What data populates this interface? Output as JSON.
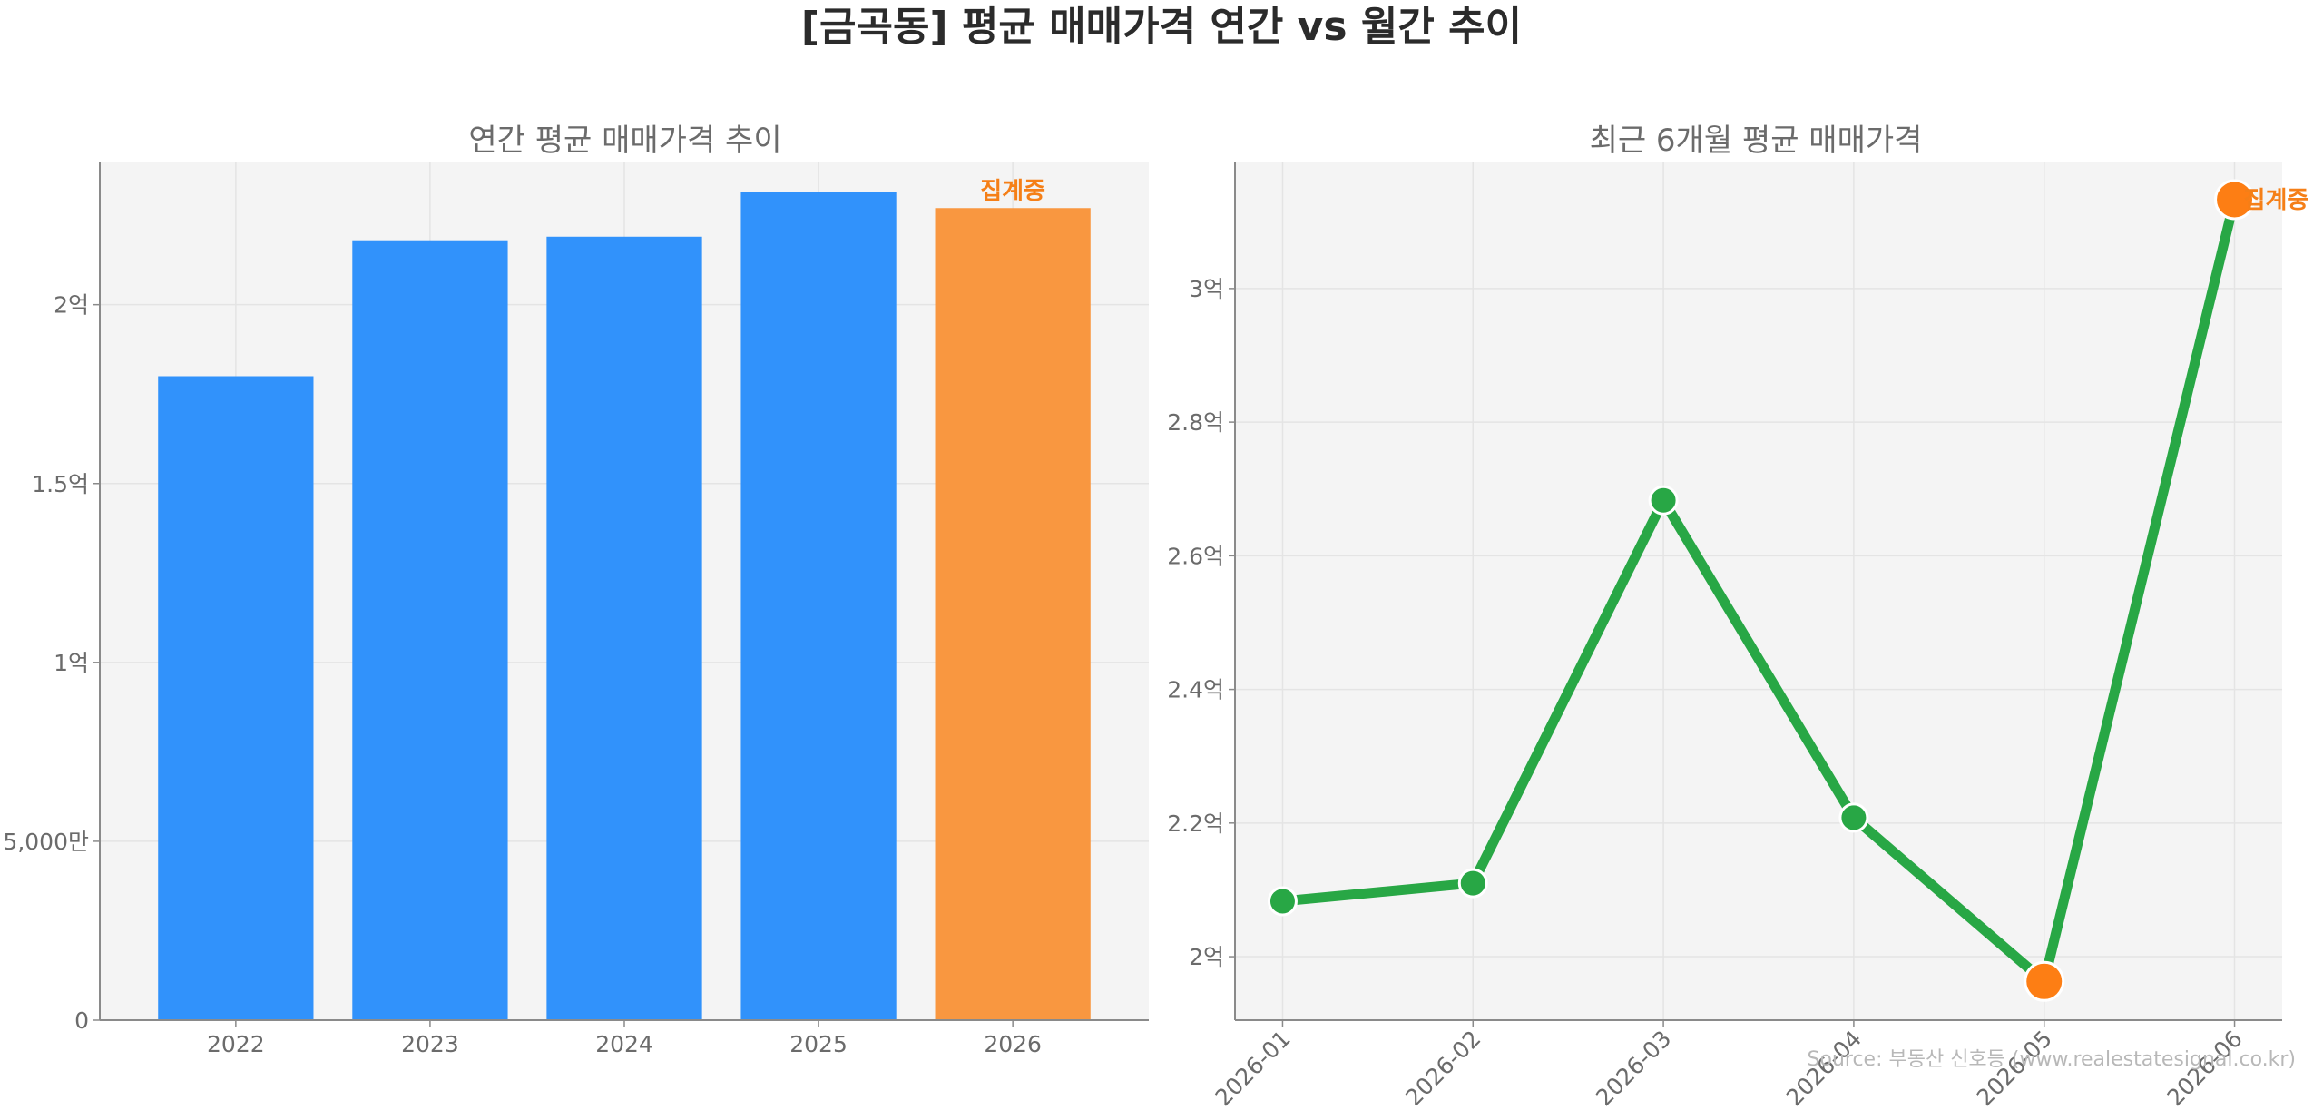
{
  "figure": {
    "title": "[금곡동] 평균 매매가격 연간 vs 월간 추이",
    "source": "Source: 부동산 신호등 (www.realestatesignal.co.kr)"
  },
  "colors": {
    "bar_normal": "#3192fb",
    "bar_highlight": "#f99740",
    "line": "#28a745",
    "marker_highlight": "#fd7e14",
    "annotation": "#f57f17",
    "panel_bg": "#f4f4f4",
    "grid": "#e4e4e4",
    "axis": "#8a8a8a"
  },
  "chart_data": [
    {
      "type": "bar",
      "title": "연간 평균 매매가격 추이",
      "categories": [
        "2022",
        "2023",
        "2024",
        "2025",
        "2026"
      ],
      "values": [
        180000000,
        218000000,
        219000000,
        231500000,
        227000000
      ],
      "highlight_index": 4,
      "highlight_label": "집계중",
      "ylim": [
        0,
        240000000
      ],
      "yticks": [
        0,
        50000000,
        100000000,
        150000000,
        200000000
      ],
      "ytick_labels": [
        "0",
        "5,000만",
        "1억",
        "1.5억",
        "2억"
      ],
      "grid": true
    },
    {
      "type": "line",
      "title": "최근 6개월 평균 매매가격",
      "x": [
        "2026-01",
        "2026-02",
        "2026-03",
        "2026-04",
        "2026-05",
        "2026-06"
      ],
      "values": [
        208300000,
        211000000,
        268300000,
        220800000,
        196300000,
        313300000
      ],
      "highlight_indices": [
        4,
        5
      ],
      "highlight_label": "집계중",
      "ylim": [
        190500000,
        319000000
      ],
      "yticks": [
        200000000,
        220000000,
        240000000,
        260000000,
        280000000,
        300000000
      ],
      "ytick_labels": [
        "2억",
        "2.2억",
        "2.4억",
        "2.6억",
        "2.8억",
        "3억"
      ],
      "grid": true
    }
  ]
}
